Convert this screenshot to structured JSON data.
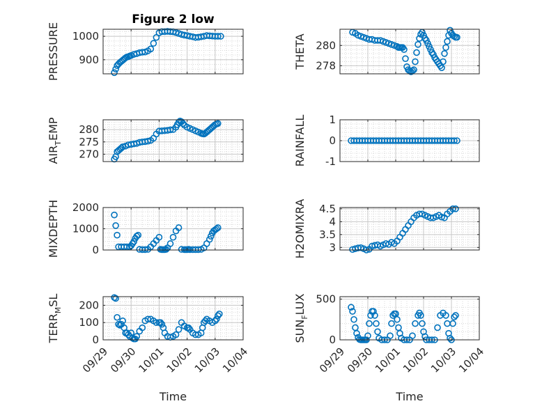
{
  "figure_title": "Figure 2 low",
  "colors": {
    "marker": "#0072BD",
    "axis": "#262626",
    "grid": "#d7d7d7"
  },
  "chart_data": [
    {
      "type": "scatter",
      "id": "pressure",
      "title": "Figure 2 low",
      "ylabel_main": "PRESSURE",
      "ylabel_sub": "",
      "ylabel_tail": "",
      "xlabel": "",
      "ylim": [
        840,
        1030
      ],
      "yticks": [
        900,
        1000
      ],
      "xlim": [
        0,
        5
      ],
      "xticks": [
        0,
        1,
        2,
        3,
        4,
        5
      ],
      "xticklabels": [],
      "x": [
        0.4,
        0.45,
        0.5,
        0.55,
        0.6,
        0.65,
        0.7,
        0.75,
        0.8,
        0.85,
        0.9,
        0.95,
        1.0,
        1.1,
        1.2,
        1.3,
        1.4,
        1.5,
        1.6,
        1.7,
        1.8,
        1.9,
        2.0,
        2.1,
        2.2,
        2.3,
        2.4,
        2.5,
        2.6,
        2.7,
        2.8,
        2.9,
        3.0,
        3.1,
        3.2,
        3.3,
        3.4,
        3.5,
        3.6,
        3.7,
        3.8,
        3.9,
        4.0,
        4.1,
        4.2
      ],
      "y": [
        845,
        860,
        875,
        882,
        888,
        893,
        898,
        903,
        908,
        912,
        913,
        916,
        918,
        923,
        926,
        930,
        932,
        933,
        938,
        946,
        970,
        995,
        1015,
        1020,
        1020,
        1021,
        1020,
        1019,
        1016,
        1012,
        1008,
        1005,
        1003,
        1000,
        998,
        995,
        996,
        998,
        1000,
        1003,
        1002,
        1001,
        1000,
        1000,
        1000
      ]
    },
    {
      "type": "scatter",
      "id": "theta",
      "title": "",
      "ylabel_main": "THETA",
      "ylabel_sub": "",
      "ylabel_tail": "",
      "xlabel": "",
      "ylim": [
        277.2,
        281.6
      ],
      "yticks": [
        278,
        280
      ],
      "xlim": [
        0,
        5
      ],
      "xticks": [
        0,
        1,
        2,
        3,
        4,
        5
      ],
      "xticklabels": [],
      "x": [
        0.45,
        0.55,
        0.65,
        0.75,
        0.85,
        0.95,
        1.05,
        1.15,
        1.25,
        1.35,
        1.45,
        1.55,
        1.65,
        1.75,
        1.85,
        1.95,
        2.05,
        2.1,
        2.15,
        2.2,
        2.25,
        2.3,
        2.35,
        2.4,
        2.45,
        2.5,
        2.55,
        2.6,
        2.65,
        2.7,
        2.75,
        2.8,
        2.85,
        2.9,
        2.95,
        3.0,
        3.05,
        3.1,
        3.15,
        3.2,
        3.25,
        3.3,
        3.35,
        3.4,
        3.45,
        3.5,
        3.55,
        3.6,
        3.65,
        3.7,
        3.75,
        3.8,
        3.85,
        3.9,
        3.95,
        4.0,
        4.05,
        4.1,
        4.15,
        4.2
      ],
      "y": [
        281.3,
        281.2,
        281.0,
        280.9,
        280.8,
        280.7,
        280.6,
        280.6,
        280.5,
        280.5,
        280.5,
        280.4,
        280.3,
        280.2,
        280.1,
        280.0,
        279.9,
        279.8,
        279.8,
        279.8,
        279.8,
        279.6,
        278.7,
        277.9,
        277.6,
        277.5,
        277.4,
        277.5,
        277.6,
        278.4,
        279.3,
        280.1,
        280.7,
        281.1,
        281.3,
        281.0,
        280.7,
        280.5,
        280.2,
        279.9,
        279.6,
        279.3,
        279.1,
        278.8,
        278.6,
        278.4,
        278.2,
        278.0,
        277.8,
        278.4,
        279.2,
        279.8,
        280.4,
        281.0,
        281.5,
        281.2,
        281.0,
        280.9,
        280.8,
        280.8
      ]
    },
    {
      "type": "scatter",
      "id": "air-temp",
      "title": "",
      "ylabel_main": "AIR",
      "ylabel_sub": "T",
      "ylabel_tail": "EMP",
      "xlabel": "",
      "ylim": [
        267,
        284
      ],
      "yticks": [
        270,
        275,
        280
      ],
      "xlim": [
        0,
        5
      ],
      "xticks": [
        0,
        1,
        2,
        3,
        4,
        5
      ],
      "xticklabels": [],
      "x": [
        0.4,
        0.45,
        0.5,
        0.55,
        0.6,
        0.65,
        0.7,
        0.8,
        0.9,
        1.0,
        1.1,
        1.2,
        1.3,
        1.4,
        1.5,
        1.6,
        1.7,
        1.8,
        1.9,
        2.0,
        2.1,
        2.2,
        2.3,
        2.4,
        2.5,
        2.6,
        2.65,
        2.7,
        2.75,
        2.8,
        2.85,
        2.9,
        3.0,
        3.1,
        3.2,
        3.3,
        3.4,
        3.5,
        3.55,
        3.6,
        3.65,
        3.7,
        3.75,
        3.8,
        3.85,
        3.9,
        3.95,
        4.0,
        4.05,
        4.1
      ],
      "y": [
        268,
        269,
        271,
        271.5,
        272,
        272.5,
        273,
        273.3,
        273.8,
        274,
        274.2,
        274.4,
        274.8,
        275,
        275.1,
        275.3,
        275.6,
        276.5,
        278.2,
        279.4,
        279.5,
        279.6,
        279.7,
        279.9,
        280,
        281,
        282,
        283,
        283.5,
        283.2,
        282.5,
        281.8,
        281,
        280.5,
        280,
        279.5,
        279,
        278.5,
        278.3,
        278.2,
        278.5,
        279,
        279.5,
        280,
        280.5,
        281,
        281.5,
        282,
        282.3,
        282.5
      ]
    },
    {
      "type": "scatter",
      "id": "rainfall",
      "title": "",
      "ylabel_main": "RAINFALL",
      "ylabel_sub": "",
      "ylabel_tail": "",
      "xlabel": "",
      "ylim": [
        -1,
        1
      ],
      "yticks": [
        -1,
        0,
        1
      ],
      "xlim": [
        0,
        5
      ],
      "xticks": [
        0,
        1,
        2,
        3,
        4,
        5
      ],
      "xticklabels": [],
      "x": [
        0.4,
        0.5,
        0.6,
        0.7,
        0.8,
        0.9,
        1.0,
        1.1,
        1.2,
        1.3,
        1.4,
        1.5,
        1.6,
        1.7,
        1.8,
        1.9,
        2.0,
        2.1,
        2.2,
        2.3,
        2.4,
        2.5,
        2.6,
        2.7,
        2.8,
        2.9,
        3.0,
        3.1,
        3.2,
        3.3,
        3.4,
        3.5,
        3.6,
        3.7,
        3.8,
        3.9,
        4.0,
        4.1,
        4.2
      ],
      "y": [
        0,
        0,
        0,
        0,
        0,
        0,
        0,
        0,
        0,
        0,
        0,
        0,
        0,
        0,
        0,
        0,
        0,
        0,
        0,
        0,
        0,
        0,
        0,
        0,
        0,
        0,
        0,
        0,
        0,
        0,
        0,
        0,
        0,
        0,
        0,
        0,
        0,
        0,
        0
      ]
    },
    {
      "type": "scatter",
      "id": "mixdepth",
      "title": "",
      "ylabel_main": "MIXDEPTH",
      "ylabel_sub": "",
      "ylabel_tail": "",
      "xlabel": "",
      "ylim": [
        0,
        2000
      ],
      "yticks": [
        0,
        1000,
        2000
      ],
      "xlim": [
        0,
        5
      ],
      "xticks": [
        0,
        1,
        2,
        3,
        4,
        5
      ],
      "xticklabels": [],
      "x": [
        0.4,
        0.45,
        0.5,
        0.55,
        0.65,
        0.75,
        0.85,
        0.95,
        1.0,
        1.05,
        1.1,
        1.15,
        1.2,
        1.25,
        1.3,
        1.4,
        1.5,
        1.6,
        1.7,
        1.8,
        1.9,
        2.0,
        2.05,
        2.1,
        2.15,
        2.2,
        2.25,
        2.3,
        2.4,
        2.5,
        2.6,
        2.7,
        2.8,
        2.9,
        2.95,
        3.0,
        3.05,
        3.1,
        3.2,
        3.3,
        3.4,
        3.5,
        3.6,
        3.7,
        3.8,
        3.85,
        3.9,
        3.95,
        4.0,
        4.05,
        4.1
      ],
      "y": [
        1650,
        1150,
        700,
        150,
        150,
        150,
        150,
        150,
        200,
        300,
        400,
        550,
        650,
        700,
        30,
        20,
        20,
        30,
        150,
        300,
        450,
        600,
        30,
        20,
        20,
        20,
        30,
        100,
        300,
        600,
        900,
        1050,
        30,
        20,
        20,
        20,
        30,
        20,
        20,
        20,
        20,
        30,
        100,
        300,
        500,
        650,
        800,
        900,
        950,
        1000,
        1050
      ]
    },
    {
      "type": "scatter",
      "id": "h2omixra",
      "title": "",
      "ylabel_main": "H2OMIXRA",
      "ylabel_sub": "",
      "ylabel_tail": "",
      "xlabel": "",
      "ylim": [
        2.9,
        4.55
      ],
      "yticks": [
        3,
        3.5,
        4,
        4.5
      ],
      "xlim": [
        0,
        5
      ],
      "xticks": [
        0,
        1,
        2,
        3,
        4,
        5
      ],
      "xticklabels": [],
      "x": [
        0.45,
        0.55,
        0.65,
        0.75,
        0.85,
        0.95,
        1.05,
        1.15,
        1.25,
        1.35,
        1.45,
        1.55,
        1.65,
        1.75,
        1.85,
        1.95,
        2.05,
        2.15,
        2.25,
        2.35,
        2.45,
        2.55,
        2.65,
        2.75,
        2.85,
        2.95,
        3.05,
        3.15,
        3.25,
        3.35,
        3.45,
        3.55,
        3.65,
        3.75,
        3.85,
        3.95,
        4.05,
        4.15
      ],
      "y": [
        2.92,
        2.95,
        2.98,
        2.99,
        2.95,
        2.9,
        2.93,
        3.05,
        3.08,
        3.1,
        3.05,
        3.1,
        3.15,
        3.12,
        3.2,
        3.15,
        3.25,
        3.4,
        3.55,
        3.7,
        3.85,
        4.0,
        4.15,
        4.25,
        4.3,
        4.3,
        4.25,
        4.2,
        4.15,
        4.15,
        4.2,
        4.25,
        4.18,
        4.15,
        4.3,
        4.4,
        4.5,
        4.5
      ]
    },
    {
      "type": "scatter",
      "id": "terr-msl",
      "title": "",
      "ylabel_main": "TERR",
      "ylabel_sub": "M",
      "ylabel_tail": "SL",
      "xlabel": "Time",
      "ylim": [
        0,
        250
      ],
      "yticks": [
        0,
        100,
        200
      ],
      "xlim": [
        0,
        5
      ],
      "xticks": [
        0,
        1,
        2,
        3,
        4,
        5
      ],
      "xticklabels": [
        "09/29",
        "09/30",
        "10/01",
        "10/02",
        "10/03",
        "10/04"
      ],
      "x": [
        0.4,
        0.45,
        0.5,
        0.55,
        0.6,
        0.65,
        0.7,
        0.75,
        0.8,
        0.85,
        0.9,
        0.95,
        1.0,
        1.05,
        1.1,
        1.15,
        1.2,
        1.3,
        1.4,
        1.5,
        1.6,
        1.7,
        1.8,
        1.9,
        2.0,
        2.05,
        2.1,
        2.15,
        2.2,
        2.3,
        2.4,
        2.5,
        2.6,
        2.7,
        2.8,
        2.9,
        3.0,
        3.05,
        3.1,
        3.2,
        3.3,
        3.4,
        3.5,
        3.55,
        3.6,
        3.65,
        3.7,
        3.8,
        3.9,
        4.0,
        4.05,
        4.1,
        4.15
      ],
      "y": [
        245,
        240,
        130,
        90,
        85,
        90,
        110,
        70,
        40,
        40,
        30,
        20,
        40,
        10,
        5,
        5,
        20,
        50,
        70,
        110,
        120,
        120,
        110,
        100,
        100,
        100,
        90,
        70,
        40,
        20,
        15,
        20,
        30,
        60,
        100,
        80,
        70,
        70,
        60,
        40,
        30,
        30,
        40,
        70,
        100,
        110,
        120,
        110,
        100,
        110,
        120,
        140,
        150
      ]
    },
    {
      "type": "scatter",
      "id": "sun-flux",
      "title": "",
      "ylabel_main": "SUN",
      "ylabel_sub": "F",
      "ylabel_tail": "LUX",
      "xlabel": "Time",
      "ylim": [
        0,
        530
      ],
      "yticks": [
        0,
        500
      ],
      "xlim": [
        0,
        5
      ],
      "xticks": [
        0,
        1,
        2,
        3,
        4,
        5
      ],
      "xticklabels": [
        "09/29",
        "09/30",
        "10/01",
        "10/02",
        "10/03",
        "10/04"
      ],
      "x": [
        0.4,
        0.45,
        0.5,
        0.55,
        0.6,
        0.65,
        0.7,
        0.75,
        0.8,
        0.85,
        0.9,
        0.95,
        1.0,
        1.05,
        1.1,
        1.15,
        1.2,
        1.25,
        1.3,
        1.35,
        1.4,
        1.5,
        1.6,
        1.7,
        1.8,
        1.85,
        1.9,
        1.95,
        2.0,
        2.05,
        2.1,
        2.15,
        2.2,
        2.3,
        2.4,
        2.5,
        2.6,
        2.7,
        2.8,
        2.85,
        2.9,
        2.95,
        3.0,
        3.05,
        3.1,
        3.2,
        3.3,
        3.4,
        3.5,
        3.6,
        3.7,
        3.8,
        3.85,
        3.9,
        3.95,
        4.0,
        4.05,
        4.1,
        4.15
      ],
      "y": [
        400,
        350,
        250,
        150,
        80,
        30,
        5,
        0,
        0,
        0,
        0,
        0,
        50,
        200,
        300,
        350,
        350,
        300,
        200,
        100,
        20,
        0,
        0,
        0,
        50,
        200,
        300,
        320,
        320,
        250,
        150,
        80,
        20,
        0,
        0,
        0,
        50,
        200,
        300,
        330,
        300,
        200,
        100,
        40,
        0,
        0,
        0,
        0,
        150,
        300,
        330,
        300,
        200,
        80,
        20,
        0,
        200,
        280,
        300
      ]
    }
  ]
}
